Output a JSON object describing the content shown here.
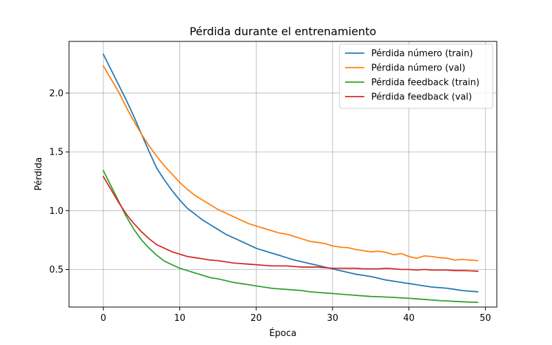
{
  "chart_data": {
    "type": "line",
    "title": "Pérdida durante el entrenamiento",
    "xlabel": "Época",
    "ylabel": "Pérdida",
    "xlim": [
      -4.5,
      51.5
    ],
    "ylim": [
      0.18,
      2.44
    ],
    "xticks": [
      0,
      10,
      20,
      30,
      40,
      50
    ],
    "xtick_labels": [
      "0",
      "10",
      "20",
      "30",
      "40",
      "50"
    ],
    "yticks": [
      0.5,
      1.0,
      1.5,
      2.0
    ],
    "ytick_labels": [
      "0.5",
      "1.0",
      "1.5",
      "2.0"
    ],
    "grid": true,
    "legend_position": "top-right",
    "x": [
      0,
      1,
      2,
      3,
      4,
      5,
      6,
      7,
      8,
      9,
      10,
      11,
      12,
      13,
      14,
      15,
      16,
      17,
      18,
      19,
      20,
      21,
      22,
      23,
      24,
      25,
      26,
      27,
      28,
      29,
      30,
      31,
      32,
      33,
      34,
      35,
      36,
      37,
      38,
      39,
      40,
      41,
      42,
      43,
      44,
      45,
      46,
      47,
      48,
      49
    ],
    "series": [
      {
        "name": "Pérdida número (train)",
        "color": "#1f77b4",
        "values": [
          2.33,
          2.2,
          2.07,
          1.94,
          1.8,
          1.65,
          1.5,
          1.36,
          1.26,
          1.17,
          1.09,
          1.02,
          0.97,
          0.92,
          0.88,
          0.84,
          0.8,
          0.77,
          0.74,
          0.71,
          0.68,
          0.66,
          0.64,
          0.62,
          0.6,
          0.58,
          0.565,
          0.55,
          0.535,
          0.52,
          0.505,
          0.49,
          0.475,
          0.46,
          0.45,
          0.44,
          0.425,
          0.41,
          0.4,
          0.39,
          0.38,
          0.37,
          0.36,
          0.35,
          0.345,
          0.34,
          0.33,
          0.32,
          0.315,
          0.31
        ]
      },
      {
        "name": "Pérdida número (val)",
        "color": "#ff7f0e",
        "values": [
          2.23,
          2.12,
          2.01,
          1.88,
          1.76,
          1.65,
          1.55,
          1.46,
          1.38,
          1.31,
          1.24,
          1.18,
          1.13,
          1.09,
          1.05,
          1.01,
          0.98,
          0.95,
          0.92,
          0.89,
          0.87,
          0.85,
          0.83,
          0.81,
          0.8,
          0.78,
          0.76,
          0.74,
          0.73,
          0.72,
          0.7,
          0.69,
          0.685,
          0.67,
          0.66,
          0.65,
          0.655,
          0.645,
          0.625,
          0.635,
          0.61,
          0.595,
          0.615,
          0.61,
          0.6,
          0.595,
          0.58,
          0.585,
          0.58,
          0.575
        ]
      },
      {
        "name": "Pérdida feedback (train)",
        "color": "#2ca02c",
        "values": [
          1.34,
          1.21,
          1.08,
          0.95,
          0.84,
          0.75,
          0.68,
          0.62,
          0.57,
          0.54,
          0.51,
          0.49,
          0.47,
          0.45,
          0.43,
          0.42,
          0.405,
          0.39,
          0.38,
          0.37,
          0.36,
          0.35,
          0.34,
          0.335,
          0.33,
          0.325,
          0.32,
          0.31,
          0.305,
          0.3,
          0.295,
          0.29,
          0.285,
          0.28,
          0.275,
          0.27,
          0.268,
          0.265,
          0.262,
          0.258,
          0.255,
          0.25,
          0.245,
          0.24,
          0.235,
          0.232,
          0.228,
          0.225,
          0.222,
          0.22
        ]
      },
      {
        "name": "Pérdida feedback (val)",
        "color": "#d62728",
        "values": [
          1.29,
          1.18,
          1.07,
          0.97,
          0.89,
          0.82,
          0.76,
          0.71,
          0.68,
          0.65,
          0.63,
          0.61,
          0.6,
          0.59,
          0.58,
          0.575,
          0.565,
          0.555,
          0.55,
          0.545,
          0.54,
          0.535,
          0.53,
          0.53,
          0.53,
          0.525,
          0.52,
          0.52,
          0.52,
          0.515,
          0.51,
          0.51,
          0.51,
          0.51,
          0.505,
          0.505,
          0.505,
          0.51,
          0.505,
          0.5,
          0.5,
          0.495,
          0.5,
          0.495,
          0.495,
          0.495,
          0.49,
          0.49,
          0.488,
          0.485
        ]
      }
    ]
  }
}
